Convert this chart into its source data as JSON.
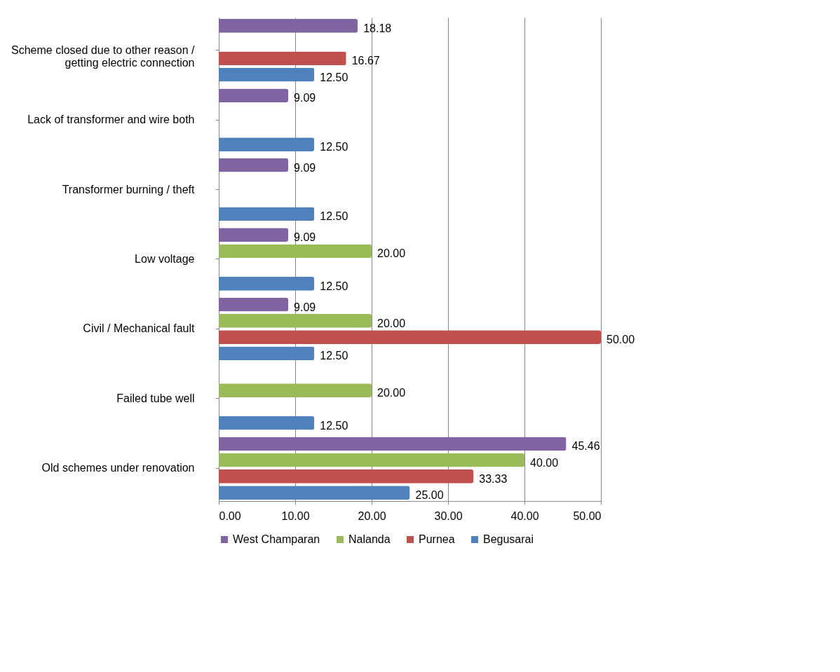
{
  "chart_data": {
    "type": "bar",
    "orientation": "horizontal",
    "categories": [
      "Scheme closed due to other reason / getting electric connection",
      "Lack of transformer and wire both",
      "Transformer burning / theft",
      "Low voltage",
      "Civil / Mechanical fault",
      "Failed tube well",
      "Old schemes under renovation"
    ],
    "series": [
      {
        "name": "Begusarai",
        "color": "#4f81bd",
        "values": [
          12.5,
          12.5,
          12.5,
          12.5,
          12.5,
          12.5,
          25
        ],
        "value_labels": [
          "12.50",
          "12.50",
          "12.50",
          "12.50",
          "12.50",
          "12.50",
          "25.00"
        ]
      },
      {
        "name": "Purnea",
        "color": "#c0504d",
        "values": [
          16.67,
          null,
          null,
          null,
          50,
          null,
          33.33
        ],
        "value_labels": [
          "16.67",
          null,
          null,
          null,
          "50.00",
          null,
          "33.33"
        ]
      },
      {
        "name": "Nalanda",
        "color": "#9bbb59",
        "values": [
          null,
          null,
          null,
          20,
          20,
          20,
          40
        ],
        "value_labels": [
          null,
          null,
          null,
          "20.00",
          "20.00",
          "20.00",
          "40.00"
        ]
      },
      {
        "name": "West Champaran",
        "color": "#8064a2",
        "values": [
          18.18,
          9.09,
          9.09,
          9.09,
          9.09,
          null,
          45.46
        ],
        "value_labels": [
          "18.18",
          "9.09",
          "9.09",
          "9.09",
          "9.09",
          null,
          "45.46"
        ]
      }
    ],
    "xlim": [
      0,
      50
    ],
    "xticks": [
      {
        "value": 0,
        "label": "0.00"
      },
      {
        "value": 10,
        "label": "10.00"
      },
      {
        "value": 20,
        "label": "20.00"
      },
      {
        "value": 30,
        "label": "30.00"
      },
      {
        "value": 40,
        "label": "40.00"
      },
      {
        "value": 50,
        "label": "50.00"
      }
    ],
    "grid": "x",
    "legend": "bottom"
  }
}
